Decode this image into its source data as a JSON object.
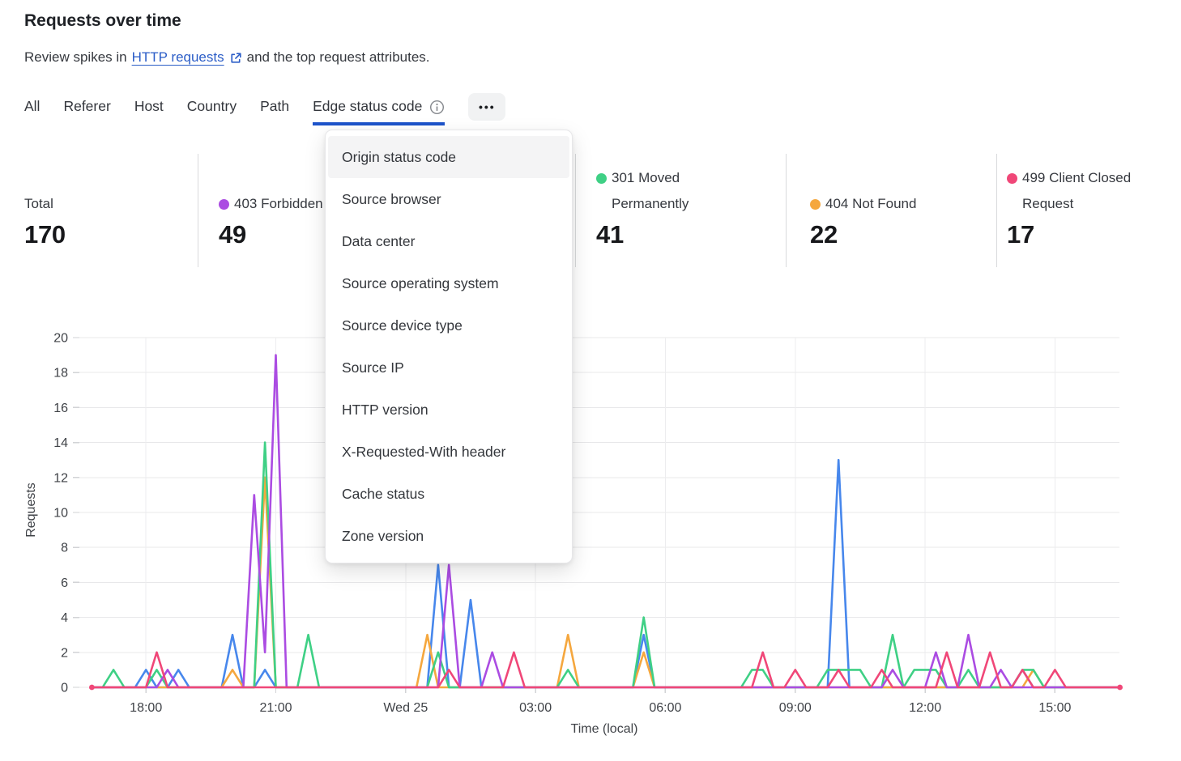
{
  "header": {
    "title": "Requests over time",
    "subtitle_prefix": "Review spikes in",
    "link_text": "HTTP requests",
    "subtitle_suffix": "and the top request attributes."
  },
  "tabs": {
    "items": [
      "All",
      "Referer",
      "Host",
      "Country",
      "Path",
      "Edge status code"
    ],
    "active_index": 5,
    "overflow_button": "•••"
  },
  "stats": {
    "blocks": [
      {
        "label": "Total",
        "value": "170",
        "dot_color": null
      },
      {
        "label": "403 Forbidden",
        "value": "49",
        "dot_color": "#ab4ce2"
      },
      {
        "label": "",
        "value": "",
        "dot_color": null
      },
      {
        "label": "301 Moved Permanently",
        "value": "41",
        "dot_color": "#3fd085"
      },
      {
        "label": "404 Not Found",
        "value": "22",
        "dot_color": "#f5a73e"
      },
      {
        "label": "499 Client Closed Request",
        "value": "17",
        "dot_color": "#f04778"
      }
    ]
  },
  "menu": {
    "items": [
      "Origin status code",
      "Source browser",
      "Data center",
      "Source operating system",
      "Source device type",
      "Source IP",
      "HTTP version",
      "X-Requested-With header",
      "Cache status",
      "Zone version"
    ],
    "highlighted_index": 0
  },
  "chart_data": {
    "type": "line",
    "title": "Requests over time",
    "xlabel": "Time (local)",
    "ylabel": "Requests",
    "ylim": [
      0,
      20
    ],
    "ytick_step": 2,
    "yticks": [
      0,
      2,
      4,
      6,
      8,
      10,
      12,
      14,
      16,
      18,
      20
    ],
    "grid": true,
    "slot_count": 97,
    "slot_minutes": 15,
    "x_ticks": [
      {
        "slot": 6,
        "label": "18:00"
      },
      {
        "slot": 18,
        "label": "21:00"
      },
      {
        "slot": 30,
        "label": "Wed 25"
      },
      {
        "slot": 42,
        "label": "03:00"
      },
      {
        "slot": 54,
        "label": "06:00"
      },
      {
        "slot": 66,
        "label": "09:00"
      },
      {
        "slot": 78,
        "label": "12:00"
      },
      {
        "slot": 90,
        "label": "15:00"
      }
    ],
    "series": [
      {
        "label": "",
        "color": "#4787ec",
        "points": [
          [
            6,
            1
          ],
          [
            9,
            1
          ],
          [
            14,
            3
          ],
          [
            17,
            1
          ],
          [
            33,
            7
          ],
          [
            36,
            5
          ],
          [
            52,
            3
          ],
          [
            70,
            13
          ],
          [
            87,
            1
          ]
        ]
      },
      {
        "label": "404 Not Found",
        "color": "#f5a73e",
        "points": [
          [
            14,
            1
          ],
          [
            17,
            12
          ],
          [
            32,
            3
          ],
          [
            45,
            3
          ],
          [
            52,
            2
          ],
          [
            88,
            1
          ]
        ]
      },
      {
        "label": "301 Moved Permanently",
        "color": "#3fd085",
        "points": [
          [
            3,
            1
          ],
          [
            7,
            1
          ],
          [
            17,
            14
          ],
          [
            21,
            3
          ],
          [
            33,
            2
          ],
          [
            45,
            1
          ],
          [
            52,
            4
          ],
          [
            62,
            1
          ],
          [
            63,
            1
          ],
          [
            69,
            1
          ],
          [
            70,
            1
          ],
          [
            71,
            1
          ],
          [
            72,
            1
          ],
          [
            75,
            3
          ],
          [
            77,
            1
          ],
          [
            78,
            1
          ],
          [
            79,
            1
          ],
          [
            82,
            1
          ],
          [
            87,
            1
          ],
          [
            88,
            1
          ]
        ]
      },
      {
        "label": "403 Forbidden",
        "color": "#ab4ce2",
        "points": [
          [
            8,
            1
          ],
          [
            16,
            11
          ],
          [
            17,
            2
          ],
          [
            18,
            19
          ],
          [
            34,
            7
          ],
          [
            38,
            2
          ],
          [
            75,
            1
          ],
          [
            79,
            2
          ],
          [
            82,
            3
          ],
          [
            85,
            1
          ]
        ]
      },
      {
        "label": "499 Client Closed Request",
        "color": "#f04778",
        "end_dots": true,
        "points": [
          [
            7,
            2
          ],
          [
            34,
            1
          ],
          [
            40,
            2
          ],
          [
            63,
            2
          ],
          [
            66,
            1
          ],
          [
            70,
            1
          ],
          [
            74,
            1
          ],
          [
            80,
            2
          ],
          [
            84,
            2
          ],
          [
            87,
            1
          ],
          [
            90,
            1
          ]
        ]
      }
    ]
  }
}
